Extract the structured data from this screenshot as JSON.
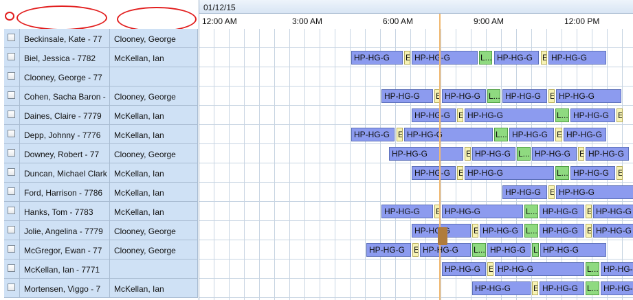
{
  "schedule": {
    "date": "01/12/15",
    "time_labels": [
      "12:00 AM",
      "3:00 AM",
      "6:00 AM",
      "9:00 AM",
      "12:00 PM"
    ],
    "rows": [
      {
        "name": "Beckinsale, Kate  - 77",
        "manager": "Clooney, George",
        "bars": []
      },
      {
        "name": "Biel, Jessica  - 7782",
        "manager": "McKellan, Ian",
        "bars": [
          {
            "type": "shift",
            "label": "HP-HG-G"
          },
          {
            "type": "e",
            "label": "E"
          },
          {
            "type": "shift",
            "label": "HP-HG-G"
          },
          {
            "type": "l",
            "label": "L..."
          },
          {
            "type": "shift",
            "label": "HP-HG-G"
          },
          {
            "type": "e",
            "label": "E"
          },
          {
            "type": "shift",
            "label": "HP-HG-G"
          }
        ]
      },
      {
        "name": "Clooney, George  - 77",
        "manager": "",
        "bars": []
      },
      {
        "name": "Cohen, Sacha Baron -",
        "manager": "Clooney, George",
        "bars": [
          {
            "type": "shift",
            "label": "HP-HG-G"
          },
          {
            "type": "e",
            "label": "E"
          },
          {
            "type": "shift",
            "label": "HP-HG-G"
          },
          {
            "type": "l",
            "label": "L..."
          },
          {
            "type": "shift",
            "label": "HP-HG-G"
          },
          {
            "type": "e",
            "label": "E"
          },
          {
            "type": "shift",
            "label": "HP-HG-G"
          }
        ]
      },
      {
        "name": "Daines, Claire  - 7779",
        "manager": "McKellan, Ian",
        "bars": [
          {
            "type": "shift",
            "label": "HP-HG-G"
          },
          {
            "type": "e",
            "label": "E"
          },
          {
            "type": "shift",
            "label": "HP-HG-G"
          },
          {
            "type": "l",
            "label": "L..."
          },
          {
            "type": "shift",
            "label": "HP-HG-G"
          },
          {
            "type": "e",
            "label": "E"
          }
        ]
      },
      {
        "name": "Depp, Johnny  - 7776",
        "manager": "McKellan, Ian",
        "bars": [
          {
            "type": "shift",
            "label": "HP-HG-G"
          },
          {
            "type": "e",
            "label": "E"
          },
          {
            "type": "shift",
            "label": "HP-HG-G"
          },
          {
            "type": "l",
            "label": "L..."
          },
          {
            "type": "shift",
            "label": "HP-HG-G"
          },
          {
            "type": "e",
            "label": "E"
          },
          {
            "type": "shift",
            "label": "HP-HG-G"
          }
        ]
      },
      {
        "name": "Downey, Robert  - 77",
        "manager": "Clooney, George",
        "bars": [
          {
            "type": "shift",
            "label": "HP-HG-G"
          },
          {
            "type": "e",
            "label": "E"
          },
          {
            "type": "shift",
            "label": "HP-HG-G"
          },
          {
            "type": "l",
            "label": "L..."
          },
          {
            "type": "shift",
            "label": "HP-HG-G"
          },
          {
            "type": "e",
            "label": "E"
          },
          {
            "type": "shift",
            "label": "HP-HG-G"
          }
        ]
      },
      {
        "name": "Duncan, Michael Clark",
        "manager": "McKellan, Ian",
        "bars": [
          {
            "type": "shift",
            "label": "HP-HG-G"
          },
          {
            "type": "e",
            "label": "E"
          },
          {
            "type": "shift",
            "label": "HP-HG-G"
          },
          {
            "type": "l",
            "label": "L..."
          },
          {
            "type": "shift",
            "label": "HP-HG-G"
          },
          {
            "type": "e",
            "label": "E"
          }
        ]
      },
      {
        "name": "Ford, Harrison  - 7786",
        "manager": "McKellan, Ian",
        "bars": [
          {
            "type": "shift",
            "label": "HP-HG-G"
          },
          {
            "type": "e",
            "label": "E"
          },
          {
            "type": "shift",
            "label": "HP-HG-G"
          }
        ]
      },
      {
        "name": "Hanks, Tom  - 7783",
        "manager": "McKellan, Ian",
        "bars": [
          {
            "type": "shift",
            "label": "HP-HG-G"
          },
          {
            "type": "e",
            "label": "E"
          },
          {
            "type": "shift",
            "label": "HP-HG-G"
          },
          {
            "type": "l",
            "label": "L..."
          },
          {
            "type": "shift",
            "label": "HP-HG-G"
          },
          {
            "type": "e",
            "label": "E"
          },
          {
            "type": "shift",
            "label": "HP-HG-G"
          }
        ]
      },
      {
        "name": "Jolie, Angelina  - 7779",
        "manager": "Clooney, George",
        "bars": [
          {
            "type": "shift",
            "label": "HP-HG-G"
          },
          {
            "type": "e",
            "label": "E"
          },
          {
            "type": "shift",
            "label": "HP-HG-G"
          },
          {
            "type": "l",
            "label": "L..."
          },
          {
            "type": "shift",
            "label": "HP-HG-G"
          },
          {
            "type": "e",
            "label": "E"
          },
          {
            "type": "shift",
            "label": "HP-HG-G"
          }
        ]
      },
      {
        "name": "McGregor, Ewan  - 77",
        "manager": "Clooney, George",
        "bars": [
          {
            "type": "shift",
            "label": "HP-HG-G"
          },
          {
            "type": "e",
            "label": "E"
          },
          {
            "type": "shift",
            "label": "HP-HG-G"
          },
          {
            "type": "l",
            "label": "L..."
          },
          {
            "type": "shift",
            "label": "HP-HG-G"
          },
          {
            "type": "l",
            "label": "L..."
          },
          {
            "type": "shift",
            "label": "HP-HG-G"
          }
        ]
      },
      {
        "name": "McKellan, Ian  - 7771",
        "manager": "",
        "bars": [
          {
            "type": "shift",
            "label": "HP-HG-G"
          },
          {
            "type": "e",
            "label": "E"
          },
          {
            "type": "shift",
            "label": "HP-HG-G"
          },
          {
            "type": "l",
            "label": "L..."
          },
          {
            "type": "shift",
            "label": "HP-HG-C"
          }
        ]
      },
      {
        "name": "Mortensen, Viggo  - 7",
        "manager": "McKellan, Ian",
        "bars": [
          {
            "type": "shift",
            "label": "HP-HG-G"
          },
          {
            "type": "e",
            "label": "E"
          },
          {
            "type": "shift",
            "label": "HP-HG-G"
          },
          {
            "type": "l",
            "label": "L..."
          },
          {
            "type": "shift",
            "label": "HP-HG-C"
          }
        ]
      }
    ]
  },
  "colors": {
    "shift": "#8c9bef",
    "e": "#f7f3b5",
    "l": "#8fda80",
    "now_line": "#f0b871",
    "row_bg": "#cfe1f5",
    "annotation": "#e21e1e"
  }
}
